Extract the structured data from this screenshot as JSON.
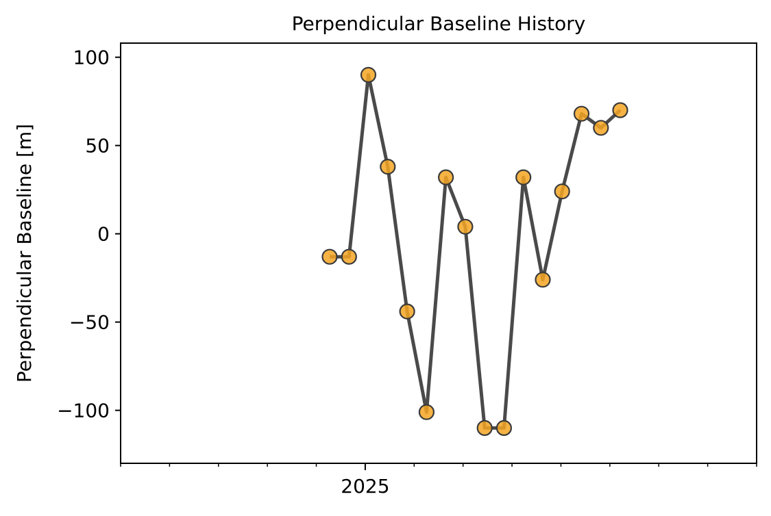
{
  "chart_data": {
    "type": "line",
    "title": "Perpendicular Baseline History",
    "xlabel": "",
    "ylabel": "Perpendicular Baseline [m]",
    "x_tick_labels": [
      "2025"
    ],
    "y_tick_labels": [
      "100",
      "50",
      "0",
      "−50",
      "−100"
    ],
    "y_ticks": [
      100,
      50,
      0,
      -50,
      -100
    ],
    "ylim": [
      -130,
      108
    ],
    "x_minor_tick_count": 14,
    "grid": false,
    "series": [
      {
        "values": [
          -13,
          -13,
          90,
          38,
          -44,
          -101,
          32,
          4,
          -110,
          -110,
          32,
          -26,
          24,
          68,
          60,
          70
        ]
      }
    ],
    "colors": {
      "line": "#4a4a4a",
      "marker_fill": "#f5a623",
      "marker_edge": "#3a3a3a"
    }
  }
}
